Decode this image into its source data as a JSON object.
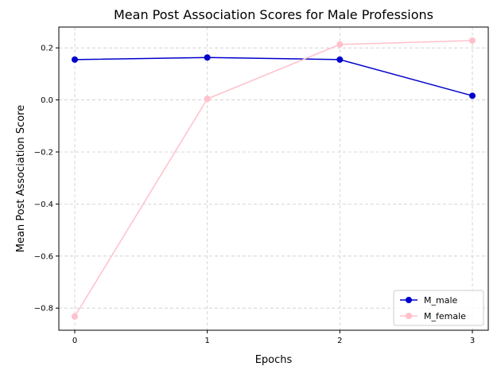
{
  "chart_data": {
    "type": "line",
    "title": "Mean Post Association Scores for Male Professions",
    "xlabel": "Epochs",
    "ylabel": "Mean Post Association Score",
    "x": [
      0,
      1,
      2,
      3
    ],
    "xticks": [
      "0",
      "1",
      "2",
      "3"
    ],
    "yticks": [
      "0.2",
      "0.0",
      "−0.2",
      "−0.4",
      "−0.6",
      "−0.8"
    ],
    "ytick_values": [
      0.2,
      0.0,
      -0.2,
      -0.4,
      -0.6,
      -0.8
    ],
    "xlim": [
      -0.12,
      3.12
    ],
    "ylim": [
      -0.885,
      0.28
    ],
    "grid": true,
    "legend_position": "lower-right",
    "series": [
      {
        "name": "M_male",
        "color": "#0000cc",
        "values": [
          0.155,
          0.163,
          0.155,
          0.016
        ]
      },
      {
        "name": "M_female",
        "color": "#ffc0cb",
        "values": [
          -0.832,
          0.004,
          0.213,
          0.228
        ]
      }
    ]
  }
}
